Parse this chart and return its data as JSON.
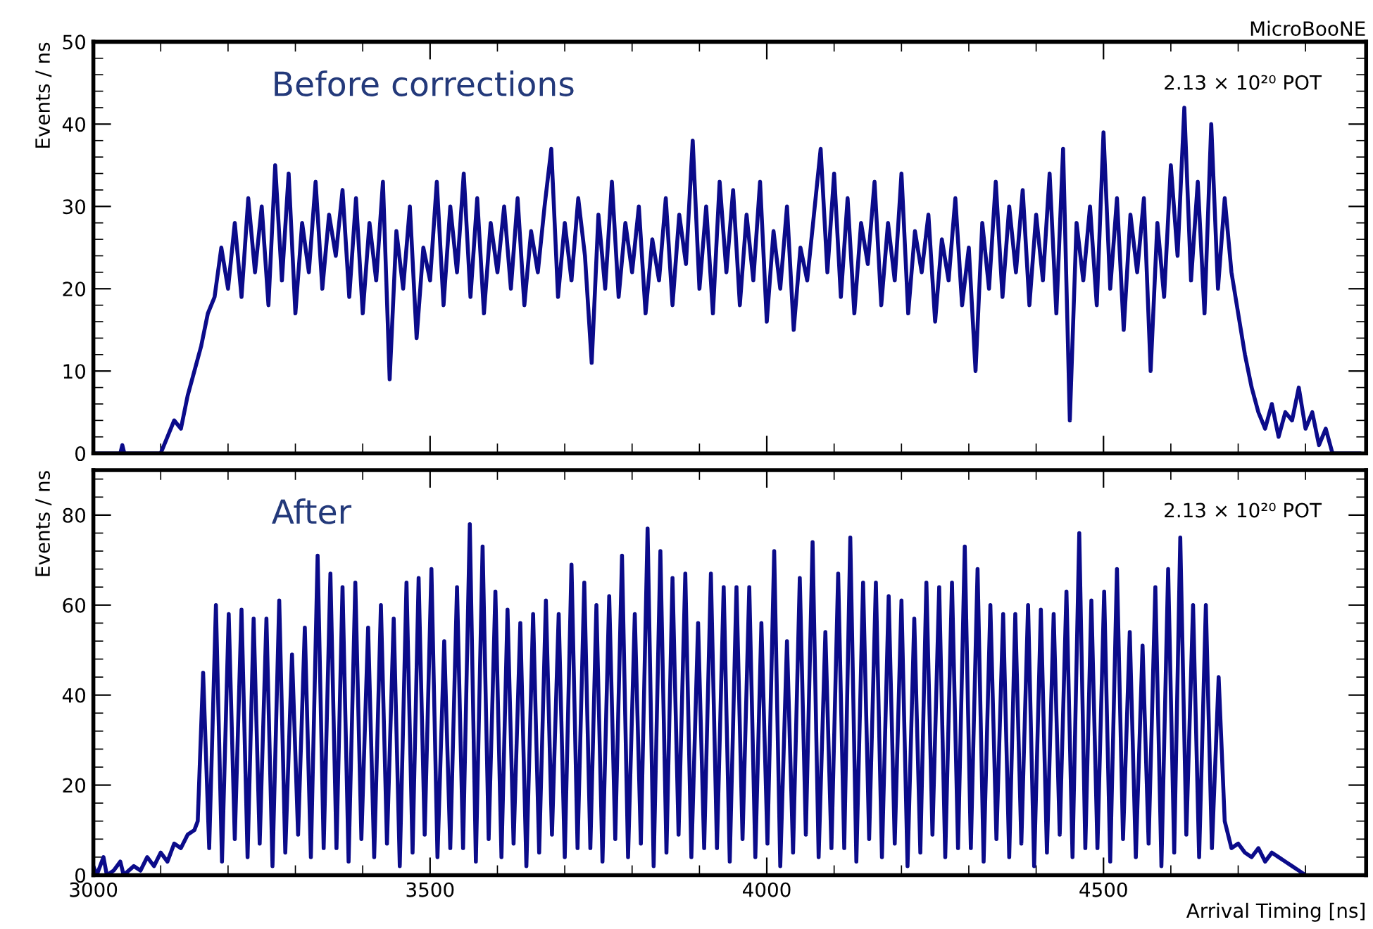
{
  "chart_data": [
    {
      "type": "line",
      "ylabel": "Events / ns",
      "annotations": [
        "Before corrections",
        "2.13 × 10²⁰ POT",
        "MicroBooNE"
      ],
      "xlim": [
        3000,
        4890
      ],
      "ylim": [
        0,
        50
      ],
      "xticks": [
        3000,
        3500,
        4000,
        4500
      ],
      "yticks": [
        0,
        10,
        20,
        30,
        40,
        50
      ],
      "tick_labels": "y",
      "series": [
        {
          "color": "#0b0b8a",
          "x": [
            3000,
            3040,
            3043,
            3046,
            3100,
            3110,
            3120,
            3130,
            3140,
            3150,
            3160,
            3170,
            3180,
            3190,
            3200,
            3210,
            3220,
            3230,
            3240,
            3250,
            3260,
            3270,
            3280,
            3290,
            3300,
            3310,
            3320,
            3330,
            3340,
            3350,
            3360,
            3370,
            3380,
            3390,
            3400,
            3410,
            3420,
            3430,
            3440,
            3450,
            3460,
            3470,
            3480,
            3490,
            3500,
            3510,
            3520,
            3530,
            3540,
            3550,
            3560,
            3570,
            3580,
            3590,
            3600,
            3610,
            3620,
            3630,
            3640,
            3650,
            3660,
            3670,
            3680,
            3690,
            3700,
            3710,
            3720,
            3730,
            3740,
            3750,
            3760,
            3770,
            3780,
            3790,
            3800,
            3810,
            3820,
            3830,
            3840,
            3850,
            3860,
            3870,
            3880,
            3890,
            3900,
            3910,
            3920,
            3930,
            3940,
            3950,
            3960,
            3970,
            3980,
            3990,
            4000,
            4010,
            4020,
            4030,
            4040,
            4050,
            4060,
            4070,
            4080,
            4090,
            4100,
            4110,
            4120,
            4130,
            4140,
            4150,
            4160,
            4170,
            4180,
            4190,
            4200,
            4210,
            4220,
            4230,
            4240,
            4250,
            4260,
            4270,
            4280,
            4290,
            4300,
            4310,
            4320,
            4330,
            4340,
            4350,
            4360,
            4370,
            4380,
            4390,
            4400,
            4410,
            4420,
            4430,
            4440,
            4450,
            4460,
            4470,
            4480,
            4490,
            4500,
            4510,
            4520,
            4530,
            4540,
            4550,
            4560,
            4570,
            4580,
            4590,
            4600,
            4610,
            4620,
            4630,
            4640,
            4650,
            4660,
            4670,
            4680,
            4690,
            4700,
            4710,
            4720,
            4730,
            4740,
            4750,
            4760,
            4770,
            4780,
            4790,
            4800,
            4810,
            4820,
            4830,
            4840,
            4880
          ],
          "values": [
            0,
            0,
            1,
            0,
            0,
            2,
            4,
            3,
            7,
            10,
            13,
            17,
            19,
            25,
            20,
            28,
            19,
            31,
            22,
            30,
            18,
            35,
            21,
            34,
            17,
            28,
            22,
            33,
            20,
            29,
            24,
            32,
            19,
            31,
            17,
            28,
            21,
            33,
            9,
            27,
            20,
            30,
            14,
            25,
            21,
            33,
            18,
            30,
            22,
            34,
            19,
            31,
            17,
            28,
            22,
            30,
            20,
            31,
            18,
            27,
            22,
            30,
            37,
            19,
            28,
            21,
            31,
            24,
            11,
            29,
            20,
            33,
            19,
            28,
            22,
            30,
            17,
            26,
            21,
            31,
            18,
            29,
            23,
            38,
            20,
            30,
            17,
            33,
            22,
            32,
            18,
            29,
            21,
            33,
            16,
            27,
            20,
            30,
            15,
            25,
            21,
            29,
            37,
            22,
            34,
            19,
            31,
            17,
            28,
            23,
            33,
            18,
            28,
            21,
            34,
            17,
            27,
            22,
            29,
            16,
            26,
            21,
            31,
            18,
            25,
            10,
            28,
            20,
            33,
            19,
            30,
            22,
            32,
            18,
            29,
            21,
            34,
            17,
            37,
            4,
            28,
            21,
            30,
            18,
            39,
            20,
            31,
            15,
            29,
            22,
            31,
            10,
            28,
            19,
            35,
            24,
            42,
            21,
            33,
            17,
            40,
            20,
            31,
            22,
            17,
            12,
            8,
            5,
            3,
            6,
            2,
            5,
            4,
            8,
            3,
            5,
            1,
            3,
            0,
            0
          ]
        }
      ]
    },
    {
      "type": "line",
      "xlabel": "Arrival Timing [ns]",
      "ylabel": "Events / ns",
      "annotations": [
        "After",
        "2.13 × 10²⁰ POT"
      ],
      "xlim": [
        3000,
        4890
      ],
      "ylim": [
        0,
        90
      ],
      "xticks": [
        3000,
        3500,
        4000,
        4500
      ],
      "yticks": [
        0,
        20,
        40,
        60,
        80
      ],
      "series": [
        {
          "color": "#0b0b8a",
          "x": [
            3000,
            3005,
            3015,
            3020,
            3030,
            3040,
            3045,
            3060,
            3070,
            3080,
            3090,
            3100,
            3110,
            3120,
            3130,
            3140,
            3150,
            3155,
            3163,
            3172,
            3182,
            3191,
            3201,
            3210,
            3220,
            3229,
            3238,
            3247,
            3257,
            3266,
            3276,
            3285,
            3295,
            3304,
            3314,
            3323,
            3333,
            3342,
            3352,
            3361,
            3370,
            3379,
            3389,
            3398,
            3408,
            3417,
            3427,
            3436,
            3446,
            3455,
            3465,
            3474,
            3483,
            3492,
            3502,
            3511,
            3521,
            3530,
            3540,
            3549,
            3559,
            3568,
            3578,
            3587,
            3597,
            3606,
            3615,
            3624,
            3634,
            3643,
            3653,
            3662,
            3672,
            3681,
            3691,
            3700,
            3710,
            3719,
            3729,
            3738,
            3747,
            3756,
            3766,
            3775,
            3785,
            3794,
            3804,
            3813,
            3823,
            3832,
            3842,
            3851,
            3860,
            3869,
            3879,
            3888,
            3898,
            3907,
            3917,
            3926,
            3936,
            3945,
            3955,
            3964,
            3974,
            3983,
            3992,
            4001,
            4011,
            4020,
            4030,
            4039,
            4049,
            4058,
            4068,
            4077,
            4087,
            4096,
            4106,
            4115,
            4124,
            4133,
            4143,
            4152,
            4162,
            4171,
            4181,
            4190,
            4200,
            4209,
            4219,
            4228,
            4237,
            4246,
            4256,
            4265,
            4275,
            4284,
            4294,
            4303,
            4313,
            4322,
            4332,
            4341,
            4351,
            4360,
            4369,
            4378,
            4388,
            4397,
            4407,
            4416,
            4426,
            4435,
            4445,
            4454,
            4464,
            4473,
            4482,
            4491,
            4501,
            4510,
            4520,
            4529,
            4539,
            4548,
            4558,
            4567,
            4577,
            4586,
            4596,
            4605,
            4614,
            4623,
            4633,
            4642,
            4652,
            4661,
            4671,
            4680,
            4690,
            4700,
            4710,
            4720,
            4730,
            4740,
            4750,
            4760,
            4770,
            4780,
            4790,
            4800
          ],
          "values": [
            2,
            0,
            4,
            0,
            1,
            3,
            0,
            2,
            1,
            4,
            2,
            5,
            3,
            7,
            6,
            9,
            10,
            12,
            45,
            6,
            60,
            3,
            58,
            8,
            59,
            4,
            57,
            7,
            57,
            2,
            61,
            5,
            49,
            9,
            55,
            4,
            71,
            6,
            67,
            6,
            64,
            3,
            65,
            8,
            55,
            4,
            60,
            7,
            57,
            2,
            65,
            5,
            66,
            9,
            68,
            4,
            52,
            6,
            64,
            6,
            78,
            3,
            73,
            8,
            63,
            4,
            59,
            7,
            56,
            2,
            58,
            5,
            61,
            9,
            58,
            4,
            69,
            6,
            65,
            6,
            60,
            3,
            62,
            8,
            71,
            4,
            58,
            7,
            77,
            2,
            72,
            5,
            66,
            9,
            67,
            4,
            56,
            6,
            67,
            6,
            64,
            3,
            64,
            8,
            64,
            4,
            56,
            7,
            72,
            2,
            52,
            5,
            66,
            9,
            74,
            4,
            54,
            6,
            67,
            6,
            75,
            3,
            65,
            8,
            65,
            4,
            62,
            7,
            61,
            2,
            57,
            5,
            65,
            9,
            64,
            4,
            65,
            6,
            73,
            6,
            68,
            3,
            60,
            8,
            58,
            4,
            58,
            7,
            60,
            2,
            59,
            5,
            58,
            9,
            63,
            4,
            76,
            6,
            61,
            6,
            63,
            3,
            68,
            8,
            54,
            4,
            51,
            7,
            64,
            2,
            68,
            5,
            75,
            9,
            60,
            4,
            60,
            6,
            44,
            12,
            6,
            7,
            5,
            4,
            6,
            3,
            5,
            4,
            3,
            2,
            1,
            0
          ]
        }
      ]
    }
  ]
}
